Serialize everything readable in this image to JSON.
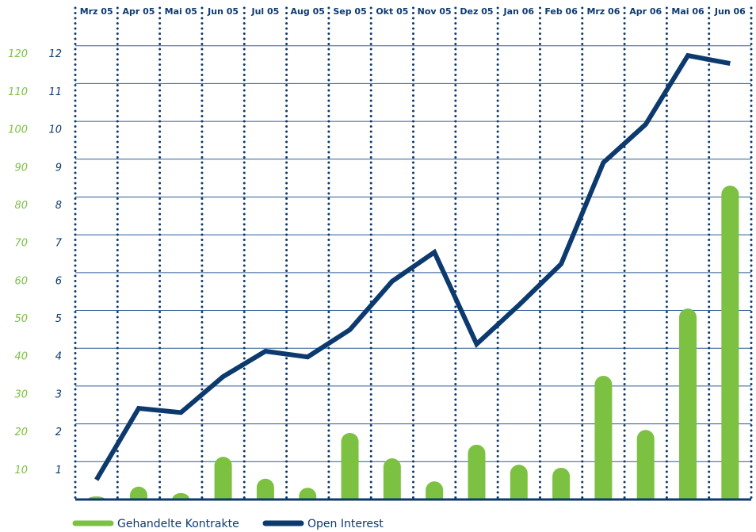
{
  "chart_data": {
    "type": "bar",
    "categories": [
      "Mrz 05",
      "Apr 05",
      "Mai 05",
      "Jun 05",
      "Jul 05",
      "Aug 05",
      "Sep 05",
      "Okt 05",
      "Nov 05",
      "Dez 05",
      "Jan 06",
      "Feb 06",
      "Mrz 06",
      "Apr 06",
      "Mai 06",
      "Jun 06"
    ],
    "series": [
      {
        "name": "Gehandelte Kontrakte",
        "type": "bar",
        "color": "#7dc142",
        "values": [
          0.8,
          3.4,
          1.7,
          11.3,
          5.5,
          3.1,
          17.6,
          10.9,
          4.8,
          14.5,
          9.2,
          8.4,
          32.7,
          18.4,
          50.5,
          83
        ]
      },
      {
        "name": "Open Interest",
        "type": "line",
        "axis": "y2",
        "color": "#0d3a6e",
        "values": [
          0.52,
          2.41,
          2.3,
          3.25,
          3.92,
          3.77,
          4.49,
          5.77,
          6.54,
          4.11,
          5.14,
          6.23,
          8.91,
          9.92,
          11.74,
          11.53
        ]
      }
    ],
    "ylim": [
      0,
      130
    ],
    "yticks": [
      10,
      20,
      30,
      40,
      50,
      60,
      70,
      80,
      90,
      100,
      110,
      120
    ],
    "y2lim": [
      0,
      13
    ],
    "y2ticks": [
      1,
      2,
      3,
      4,
      5,
      6,
      7,
      8,
      9,
      10,
      11,
      12
    ],
    "grid": true,
    "legend": "bottom"
  }
}
